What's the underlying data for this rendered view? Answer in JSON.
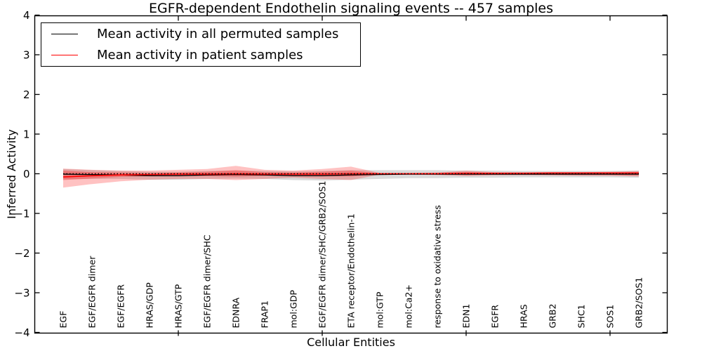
{
  "title": "EGFR-dependent Endothelin signaling events -- 457 samples",
  "legend": {
    "items": [
      {
        "label": "Mean activity in all permuted samples",
        "color": "#000000"
      },
      {
        "label": "Mean activity in patient samples",
        "color": "#ff0000"
      }
    ]
  },
  "chart_data": {
    "type": "line",
    "title": "EGFR-dependent Endothelin signaling events -- 457 samples",
    "xlabel": "Cellular Entities",
    "ylabel": "Inferred Activity",
    "ylim": [
      -4,
      4
    ],
    "y_ticks": [
      4,
      3,
      2,
      1,
      0,
      -1,
      -2,
      -3,
      -4
    ],
    "y_tick_labels": [
      "4",
      "3",
      "2",
      "1",
      "0",
      "−1",
      "−2",
      "−3",
      "−4"
    ],
    "grid": false,
    "legend_position": "upper left",
    "x_major_tick_indices": [
      4,
      9,
      14,
      19
    ],
    "categories": [
      "EGF",
      "EGF/EGFR dimer",
      "EGF/EGFR",
      "HRAS/GDP",
      "HRAS/GTP",
      "EGF/EGFR dimer/SHC",
      "EDNRA",
      "FRAP1",
      "mol:GDP",
      "EGF/EGFR dimer/SHC/GRB2/SOS1",
      "ETA receptor/Endothelin-1",
      "mol:GTP",
      "mol:Ca2+",
      "response to oxidative stress",
      "EDN1",
      "EGFR",
      "HRAS",
      "GRB2",
      "SHC1",
      "SOS1",
      "GRB2/SOS1"
    ],
    "series": [
      {
        "name": "Mean activity in all permuted samples",
        "color": "#000000",
        "linestyle": "solid",
        "values": [
          -0.01,
          -0.02,
          -0.03,
          -0.05,
          -0.05,
          -0.03,
          -0.02,
          -0.03,
          -0.05,
          -0.05,
          -0.03,
          -0.02,
          -0.01,
          -0.01,
          -0.01,
          -0.01,
          -0.01,
          -0.01,
          -0.01,
          -0.01,
          -0.01
        ]
      },
      {
        "name": "Mean activity in patient samples",
        "color": "#ff0000",
        "linestyle": "solid",
        "values": [
          -0.08,
          -0.05,
          -0.03,
          -0.02,
          -0.01,
          -0.01,
          0.0,
          -0.01,
          -0.01,
          -0.01,
          0.0,
          0.0,
          0.0,
          0.0,
          0.01,
          0.01,
          0.01,
          0.02,
          0.02,
          0.02,
          0.02
        ]
      }
    ],
    "zero_line": {
      "value": 0,
      "color": "#000000",
      "linestyle": "dotted"
    },
    "bands": [
      {
        "name": "permuted samples std band",
        "color": "#555555",
        "opacity": 0.22,
        "upper": [
          0.12,
          0.09,
          0.07,
          0.05,
          0.05,
          0.07,
          0.08,
          0.07,
          0.06,
          0.07,
          0.09,
          0.09,
          0.09,
          0.09,
          0.08,
          0.08,
          0.07,
          0.07,
          0.07,
          0.07,
          0.08
        ],
        "lower": [
          -0.14,
          -0.13,
          -0.13,
          -0.15,
          -0.15,
          -0.13,
          -0.12,
          -0.13,
          -0.16,
          -0.17,
          -0.15,
          -0.13,
          -0.11,
          -0.11,
          -0.1,
          -0.1,
          -0.09,
          -0.09,
          -0.09,
          -0.09,
          -0.1
        ]
      },
      {
        "name": "patient samples std outer band",
        "color": "#ff0000",
        "opacity": 0.24,
        "upper": [
          0.13,
          0.1,
          0.08,
          0.08,
          0.1,
          0.12,
          0.2,
          0.1,
          0.08,
          0.12,
          0.18,
          0.02,
          0.02,
          0.03,
          0.08,
          0.04,
          0.04,
          0.04,
          0.04,
          0.05,
          0.07
        ],
        "lower": [
          -0.35,
          -0.26,
          -0.19,
          -0.15,
          -0.13,
          -0.13,
          -0.16,
          -0.13,
          -0.1,
          -0.13,
          -0.16,
          -0.02,
          -0.02,
          -0.03,
          -0.06,
          -0.04,
          -0.04,
          -0.04,
          -0.05,
          -0.05,
          -0.07
        ]
      },
      {
        "name": "patient samples std inner band",
        "color": "#ff0000",
        "opacity": 0.28,
        "upper": [
          0.08,
          0.04,
          0.03,
          0.02,
          0.03,
          0.05,
          0.09,
          0.04,
          0.03,
          0.05,
          0.08,
          0.01,
          0.01,
          0.02,
          0.04,
          0.02,
          0.02,
          0.03,
          0.03,
          0.03,
          0.04
        ],
        "lower": [
          -0.16,
          -0.12,
          -0.08,
          -0.06,
          -0.05,
          -0.06,
          -0.07,
          -0.05,
          -0.04,
          -0.06,
          -0.07,
          -0.01,
          -0.01,
          -0.02,
          -0.03,
          -0.02,
          -0.02,
          -0.03,
          -0.03,
          -0.03,
          -0.04
        ]
      }
    ]
  }
}
